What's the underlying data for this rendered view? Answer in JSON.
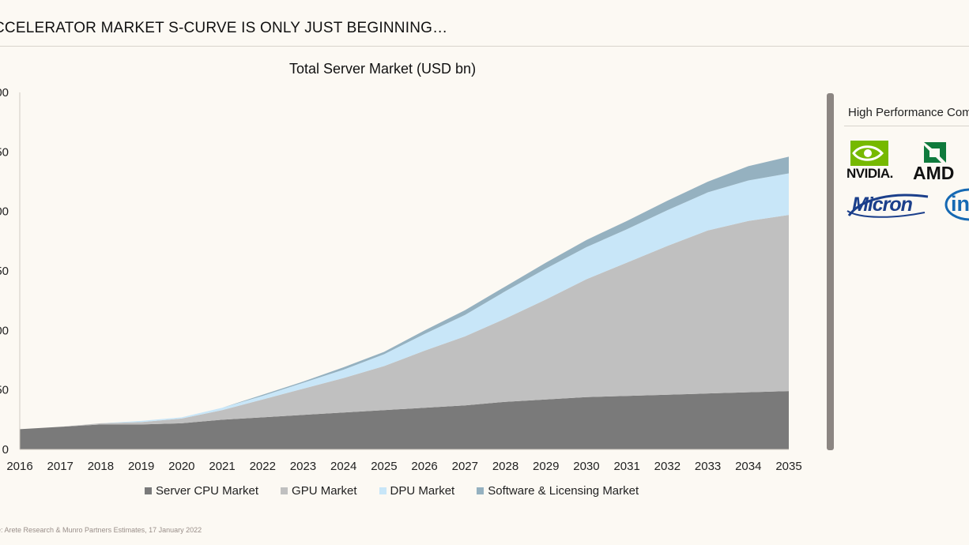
{
  "header": {
    "title": "CCELERATOR MARKET S-CURVE IS ONLY JUST BEGINNING…"
  },
  "source_note": "e: Arete Research & Munro Partners Estimates, 17 January 2022",
  "side_panel": {
    "title": "High Performance Com",
    "logos": [
      {
        "text": "NVIDIA.",
        "icon": "nvidia-eye-icon"
      },
      {
        "text": "AMD",
        "icon": "amd-arrow-icon"
      },
      {
        "text": "Micron",
        "icon": "micron-swoosh-icon"
      },
      {
        "text": "inte",
        "icon": "intel-ring-icon"
      }
    ]
  },
  "chart_data": {
    "type": "area",
    "stacked": true,
    "title": "Total Server Market (USD bn)",
    "xlabel": "",
    "ylabel": "",
    "x": [
      "2016",
      "2017",
      "2018",
      "2019",
      "2020",
      "2021",
      "2022",
      "2023",
      "2024",
      "2025",
      "2026",
      "2027",
      "2028",
      "2029",
      "2030",
      "2031",
      "2032",
      "2033",
      "2034",
      "2035"
    ],
    "ylim": [
      0,
      300
    ],
    "y_tick_labels": [
      "0",
      "50",
      "00",
      "50",
      "00",
      "50",
      "00"
    ],
    "grid": false,
    "legend_position": "bottom",
    "series": [
      {
        "name": "Server CPU Market",
        "color": "#7a7a7a",
        "values": [
          17,
          19,
          21,
          21,
          22,
          25,
          27,
          29,
          31,
          33,
          35,
          37,
          40,
          42,
          44,
          45,
          46,
          47,
          48,
          49
        ]
      },
      {
        "name": "GPU Market",
        "color": "#c0c0c0",
        "values": [
          0,
          0,
          1,
          2,
          4,
          8,
          15,
          22,
          29,
          37,
          48,
          58,
          70,
          84,
          99,
          112,
          125,
          137,
          144,
          148
        ]
      },
      {
        "name": "DPU Market",
        "color": "#c8e6f8",
        "values": [
          0,
          0,
          0,
          1,
          1,
          2,
          3,
          5,
          7,
          10,
          14,
          18,
          23,
          26,
          27,
          28,
          30,
          32,
          34,
          35
        ]
      },
      {
        "name": "Software & Licensing Market",
        "color": "#95b1c0",
        "values": [
          0,
          0,
          0,
          0,
          0,
          0,
          1,
          1,
          2,
          2,
          3,
          4,
          4,
          5,
          6,
          7,
          8,
          9,
          12,
          14
        ]
      }
    ]
  }
}
